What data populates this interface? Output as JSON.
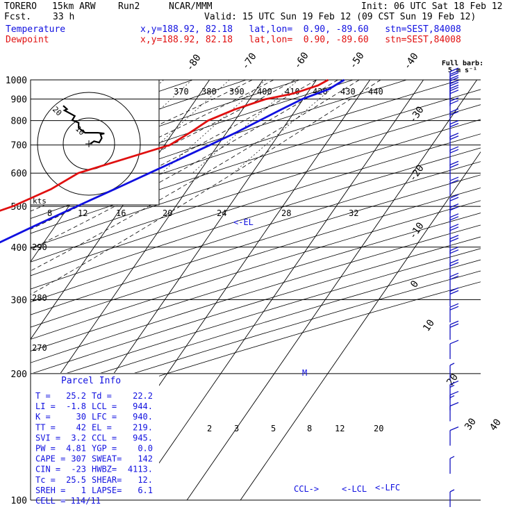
{
  "header": {
    "model": "TORERO",
    "resolution": "15km ARW",
    "run": "Run2",
    "org": "NCAR/MMM",
    "init": "Init: 06 UTC Sat 18 Feb 12",
    "fcst_label": "Fcst.",
    "fcst_value": "33 h",
    "valid": "Valid: 15 UTC Sun 19 Feb 12 (09 CST Sun 19 Feb 12)",
    "temp_label": "Temperature",
    "dew_label": "Dewpoint",
    "location_line": "x,y=188.92, 82.18   lat,lon=  0.90, -89.60   stn=SEST,84008"
  },
  "colors": {
    "temperature": "#1010e0",
    "dewpoint": "#e01010",
    "isotherm": "#000000",
    "wind": "#1010c0"
  },
  "chart_data": {
    "type": "line",
    "subtype": "skew-t sounding",
    "y_axis": {
      "quantity": "pressure (hPa)",
      "scale": "log",
      "ticks": [
        100,
        200,
        300,
        400,
        500,
        600,
        700,
        800,
        900,
        1000
      ],
      "ylim": [
        1000,
        100
      ]
    },
    "x_axis": {
      "quantity": "temperature (°C)",
      "ticks": [
        -80,
        -70,
        -60,
        -50,
        -40,
        -30,
        -20,
        -10,
        0,
        10,
        20,
        30,
        40
      ]
    },
    "series": [
      {
        "name": "Temperature",
        "pressure": [
          1000,
          950,
          900,
          850,
          800,
          750,
          700,
          650,
          600,
          550,
          500,
          450,
          400,
          350,
          300,
          250,
          200,
          175,
          150,
          125,
          100
        ],
        "values": [
          25.2,
          23.5,
          19.8,
          17.2,
          14.6,
          11.8,
          8.5,
          4.8,
          0.8,
          -3.6,
          -8.5,
          -13.8,
          -19.5,
          -26.5,
          -34.5,
          -43.5,
          -54.5,
          -60.5,
          -67,
          -72,
          -75
        ]
      },
      {
        "name": "Dewpoint",
        "pressure": [
          1000,
          970,
          940,
          925,
          900,
          850,
          800,
          750,
          700,
          650,
          600,
          550,
          500,
          450,
          400,
          350,
          300,
          250,
          225,
          210,
          200,
          175,
          150,
          125,
          100
        ],
        "values": [
          22.2,
          21.0,
          18.5,
          17.0,
          13.0,
          8.5,
          5.0,
          3.2,
          1.0,
          -5.5,
          -12.5,
          -15.5,
          -20.5,
          -28.5,
          -36.5,
          -44.5,
          -51.5,
          -62.5,
          -71,
          -76,
          -77,
          -78.5,
          -80,
          -81.5,
          -82.5
        ]
      }
    ],
    "isotherm_labels": [
      "-80",
      "-70",
      "-60",
      "-50",
      "-40",
      "-30",
      "-20",
      "-10",
      "0",
      "10",
      "20",
      "30",
      "40"
    ],
    "theta_e_labels": [
      "370",
      "380",
      "390",
      "400",
      "410",
      "420",
      "430",
      "440"
    ],
    "mixing_ratio_labels": [
      "8",
      "12",
      "16",
      "20",
      "24",
      "28",
      "32"
    ],
    "mixing_ratio_labels_low": [
      "2",
      "3",
      "5",
      "8",
      "12",
      "20"
    ],
    "theta_labels": [
      "290",
      "280",
      "270"
    ],
    "annotations": {
      "el": "<-EL",
      "ccl": "CCL->",
      "lcl": "<-LCL",
      "lfc": "<-LFC",
      "m": "M"
    },
    "hodograph": {
      "kts_label": "kts",
      "ring_labels": [
        "20",
        "10"
      ],
      "u": [
        0.5,
        2,
        4,
        5,
        4.5,
        6,
        3.5,
        -1.5,
        -4,
        -4,
        -6.5,
        -5.5,
        -9.5,
        -8.5,
        -10
      ],
      "v": [
        0,
        1,
        0.5,
        2.2,
        3.7,
        4,
        4.3,
        4.3,
        6.2,
        8.2,
        9.2,
        10.8,
        13,
        13.5,
        14.8
      ]
    },
    "wind_barbs": {
      "legend_title": "Full barb:",
      "legend_value": "5 m s⁻¹",
      "pressure": [
        100,
        120,
        140,
        160,
        170,
        180,
        200,
        225,
        250,
        275,
        300,
        325,
        350,
        375,
        400,
        425,
        450,
        475,
        500,
        550,
        600,
        650,
        700,
        750,
        800,
        850,
        900,
        925,
        950,
        975,
        1000
      ],
      "speed_ms": [
        2.5,
        2.5,
        5,
        5,
        7.5,
        7.5,
        2.5,
        5,
        10,
        10,
        10,
        10,
        10,
        10,
        10,
        10,
        10,
        10,
        10,
        10,
        10,
        10,
        10,
        10,
        10,
        10,
        10,
        10,
        10,
        10,
        10
      ]
    },
    "parcel_info": {
      "title": "Parcel Info",
      "rows": [
        [
          "T  =",
          "25.2",
          "Td =",
          "22.2"
        ],
        [
          "LI =",
          "-1.8",
          "LCL =",
          "944."
        ],
        [
          "K  =",
          "30",
          "LFC =",
          "940."
        ],
        [
          "TT =",
          "42",
          "EL =",
          "219."
        ],
        [
          "SVI =",
          "3.2",
          "CCL =",
          "945."
        ],
        [
          "PW =",
          "4.81",
          "YGP =",
          "0.0"
        ],
        [
          "CAPE =",
          "307",
          "SWEAT=",
          "142"
        ],
        [
          "CIN =",
          "-23",
          "HWBZ=",
          "4113."
        ],
        [
          "Tc =",
          "25.5",
          "SHEAR=",
          "12."
        ],
        [
          "SREH =",
          "1",
          "LAPSE=",
          "6.1"
        ]
      ],
      "cell": "CELL = 114/11"
    }
  }
}
